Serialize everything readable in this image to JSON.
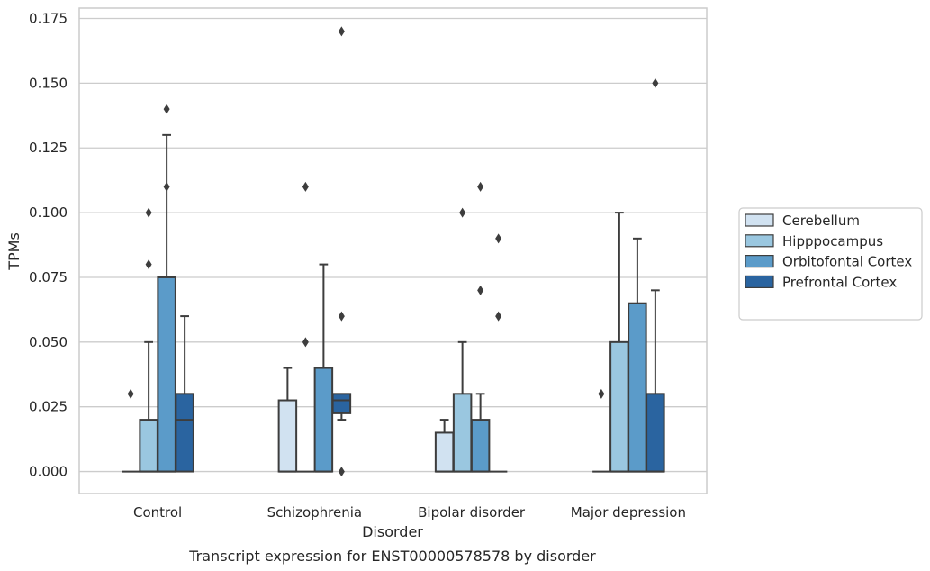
{
  "chart_data": {
    "type": "boxplot",
    "title": "Transcript expression for ENST00000578578 by disorder",
    "xlabel": "Disorder",
    "ylabel": "TPMs",
    "ylim": [
      -0.0085,
      0.179
    ],
    "yticks": [
      "0.000",
      "0.025",
      "0.050",
      "0.075",
      "0.100",
      "0.125",
      "0.150",
      "0.175"
    ],
    "grid": "horizontal",
    "legend_position": "right",
    "categories": [
      "Control",
      "Schizophrenia",
      "Bipolar disorder",
      "Major depression"
    ],
    "series": [
      {
        "name": "Cerebellum",
        "color": "#d1e2f1",
        "boxes": [
          {
            "whislo": 0,
            "q1": 0,
            "med": 0,
            "q3": 0,
            "whishi": 0,
            "fliers": [
              0.03
            ]
          },
          {
            "whislo": 0,
            "q1": 0,
            "med": 0,
            "q3": 0.0275,
            "whishi": 0.04,
            "fliers": []
          },
          {
            "whislo": 0,
            "q1": 0,
            "med": 0,
            "q3": 0.015,
            "whishi": 0.02,
            "fliers": []
          },
          {
            "whislo": 0,
            "q1": 0,
            "med": 0,
            "q3": 0,
            "whishi": 0,
            "fliers": [
              0.03
            ]
          }
        ]
      },
      {
        "name": "Hipppocampus",
        "color": "#9ac7e0",
        "boxes": [
          {
            "whislo": 0,
            "q1": 0,
            "med": 0,
            "q3": 0.02,
            "whishi": 0.05,
            "fliers": [
              0.08,
              0.1
            ]
          },
          {
            "whislo": 0,
            "q1": 0,
            "med": 0,
            "q3": 0,
            "whishi": 0,
            "fliers": [
              0.05,
              0.11
            ]
          },
          {
            "whislo": 0,
            "q1": 0,
            "med": 0,
            "q3": 0.03,
            "whishi": 0.05,
            "fliers": [
              0.1
            ]
          },
          {
            "whislo": 0,
            "q1": 0,
            "med": 0,
            "q3": 0.05,
            "whishi": 0.1,
            "fliers": []
          }
        ]
      },
      {
        "name": "Orbitofontal Cortex",
        "color": "#5b9bc9",
        "boxes": [
          {
            "whislo": 0,
            "q1": 0,
            "med": 0,
            "q3": 0.075,
            "whishi": 0.13,
            "fliers": [
              0.11,
              0.14
            ]
          },
          {
            "whislo": 0,
            "q1": 0,
            "med": 0,
            "q3": 0.04,
            "whishi": 0.08,
            "fliers": []
          },
          {
            "whislo": 0,
            "q1": 0,
            "med": 0,
            "q3": 0.02,
            "whishi": 0.03,
            "fliers": [
              0.07,
              0.11
            ]
          },
          {
            "whislo": 0,
            "q1": 0,
            "med": 0,
            "q3": 0.065,
            "whishi": 0.09,
            "fliers": []
          }
        ]
      },
      {
        "name": "Prefrontal Cortex",
        "color": "#2a64a0",
        "boxes": [
          {
            "whislo": 0,
            "q1": 0,
            "med": 0.02,
            "q3": 0.03,
            "whishi": 0.06,
            "fliers": []
          },
          {
            "whislo": 0.02,
            "q1": 0.0225,
            "med": 0.0275,
            "q3": 0.03,
            "whishi": 0.03,
            "fliers": [
              0.0,
              0.06,
              0.17
            ]
          },
          {
            "whislo": 0,
            "q1": 0,
            "med": 0,
            "q3": 0,
            "whishi": 0,
            "fliers": [
              0.06,
              0.09
            ]
          },
          {
            "whislo": 0,
            "q1": 0,
            "med": 0,
            "q3": 0.03,
            "whishi": 0.07,
            "fliers": [
              0.15
            ]
          }
        ]
      }
    ]
  }
}
